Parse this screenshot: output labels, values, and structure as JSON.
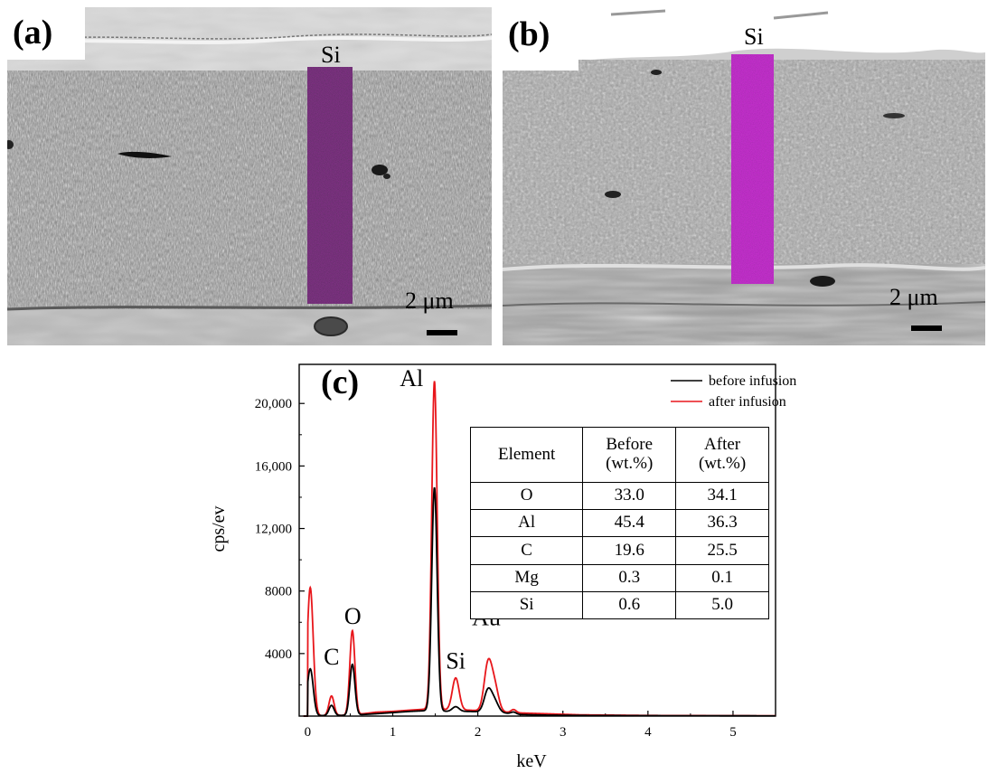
{
  "panels": {
    "a": {
      "letter": "(a)",
      "overlay_label": "Si",
      "scale_label": "2 μm"
    },
    "b": {
      "letter": "(b)",
      "overlay_label": "Si",
      "scale_label": "2 μm"
    },
    "c": {
      "letter": "(c)"
    }
  },
  "colors": {
    "before": "#000000",
    "after": "#e8161b",
    "si_map": "#3a1140"
  },
  "chart_data": {
    "type": "line",
    "xlabel": "keV",
    "ylabel": "cps/ev",
    "xlim": [
      -0.1,
      5.5
    ],
    "ylim": [
      0,
      22500
    ],
    "x_ticks": [
      0,
      1,
      2,
      3,
      4,
      5
    ],
    "y_ticks": [
      4000,
      8000,
      12000,
      16000,
      20000
    ],
    "y_tick_labels": [
      "4000",
      "8000",
      "12,000",
      "16,000",
      "20,000"
    ],
    "legend_position": "top-right",
    "series": [
      {
        "name": "before infusion",
        "color": "#000000",
        "baseline": [
          [
            0.0,
            20
          ],
          [
            0.5,
            50
          ],
          [
            0.8,
            150
          ],
          [
            1.2,
            300
          ],
          [
            1.4,
            350
          ],
          [
            1.65,
            300
          ],
          [
            1.9,
            300
          ],
          [
            2.3,
            200
          ],
          [
            2.5,
            100
          ],
          [
            2.8,
            60
          ],
          [
            3.2,
            40
          ],
          [
            4.0,
            25
          ],
          [
            5.5,
            15
          ]
        ],
        "peaks": [
          {
            "center": 0.03,
            "height": 3000,
            "width": 0.035
          },
          {
            "center": 0.28,
            "height": 650,
            "width": 0.03
          },
          {
            "center": 0.525,
            "height": 3250,
            "width": 0.03
          },
          {
            "center": 1.49,
            "height": 14300,
            "width": 0.032
          },
          {
            "center": 1.74,
            "height": 300,
            "width": 0.04
          },
          {
            "center": 2.12,
            "height": 1400,
            "width": 0.045
          },
          {
            "center": 2.2,
            "height": 650,
            "width": 0.045
          },
          {
            "center": 2.42,
            "height": 120,
            "width": 0.03
          }
        ]
      },
      {
        "name": "after infusion",
        "color": "#e8161b",
        "baseline": [
          [
            0.0,
            20
          ],
          [
            0.5,
            50
          ],
          [
            0.8,
            250
          ],
          [
            1.0,
            300
          ],
          [
            1.2,
            380
          ],
          [
            1.4,
            450
          ],
          [
            1.65,
            400
          ],
          [
            1.9,
            380
          ],
          [
            2.3,
            250
          ],
          [
            2.5,
            200
          ],
          [
            2.8,
            150
          ],
          [
            3.2,
            80
          ],
          [
            4.0,
            40
          ],
          [
            5.5,
            20
          ]
        ],
        "peaks": [
          {
            "center": 0.03,
            "height": 8200,
            "width": 0.035
          },
          {
            "center": 0.28,
            "height": 1250,
            "width": 0.03
          },
          {
            "center": 0.525,
            "height": 5400,
            "width": 0.03
          },
          {
            "center": 1.49,
            "height": 21000,
            "width": 0.032
          },
          {
            "center": 1.74,
            "height": 2050,
            "width": 0.04
          },
          {
            "center": 2.12,
            "height": 3000,
            "width": 0.045
          },
          {
            "center": 2.2,
            "height": 1500,
            "width": 0.045
          },
          {
            "center": 2.42,
            "height": 200,
            "width": 0.03
          }
        ]
      }
    ],
    "annotations": [
      {
        "text": "C",
        "x": 0.28,
        "y": 3300
      },
      {
        "text": "O",
        "x": 0.53,
        "y": 5900
      },
      {
        "text": "Al",
        "x": 1.22,
        "y": 21100
      },
      {
        "text": "Si",
        "x": 1.74,
        "y": 3050
      },
      {
        "text": "Au",
        "x": 2.1,
        "y": 5800
      }
    ],
    "table": {
      "headers": [
        "Element",
        "Before (wt.%)",
        "After (wt.%)"
      ],
      "header_lines": [
        [
          "Element"
        ],
        [
          "Before",
          "(wt.%)"
        ],
        [
          "After",
          "(wt.%)"
        ]
      ],
      "rows": [
        [
          "O",
          "33.0",
          "34.1"
        ],
        [
          "Al",
          "45.4",
          "36.3"
        ],
        [
          "C",
          "19.6",
          "25.5"
        ],
        [
          "Mg",
          "0.3",
          "0.1"
        ],
        [
          "Si",
          "0.6",
          "5.0"
        ]
      ]
    }
  }
}
